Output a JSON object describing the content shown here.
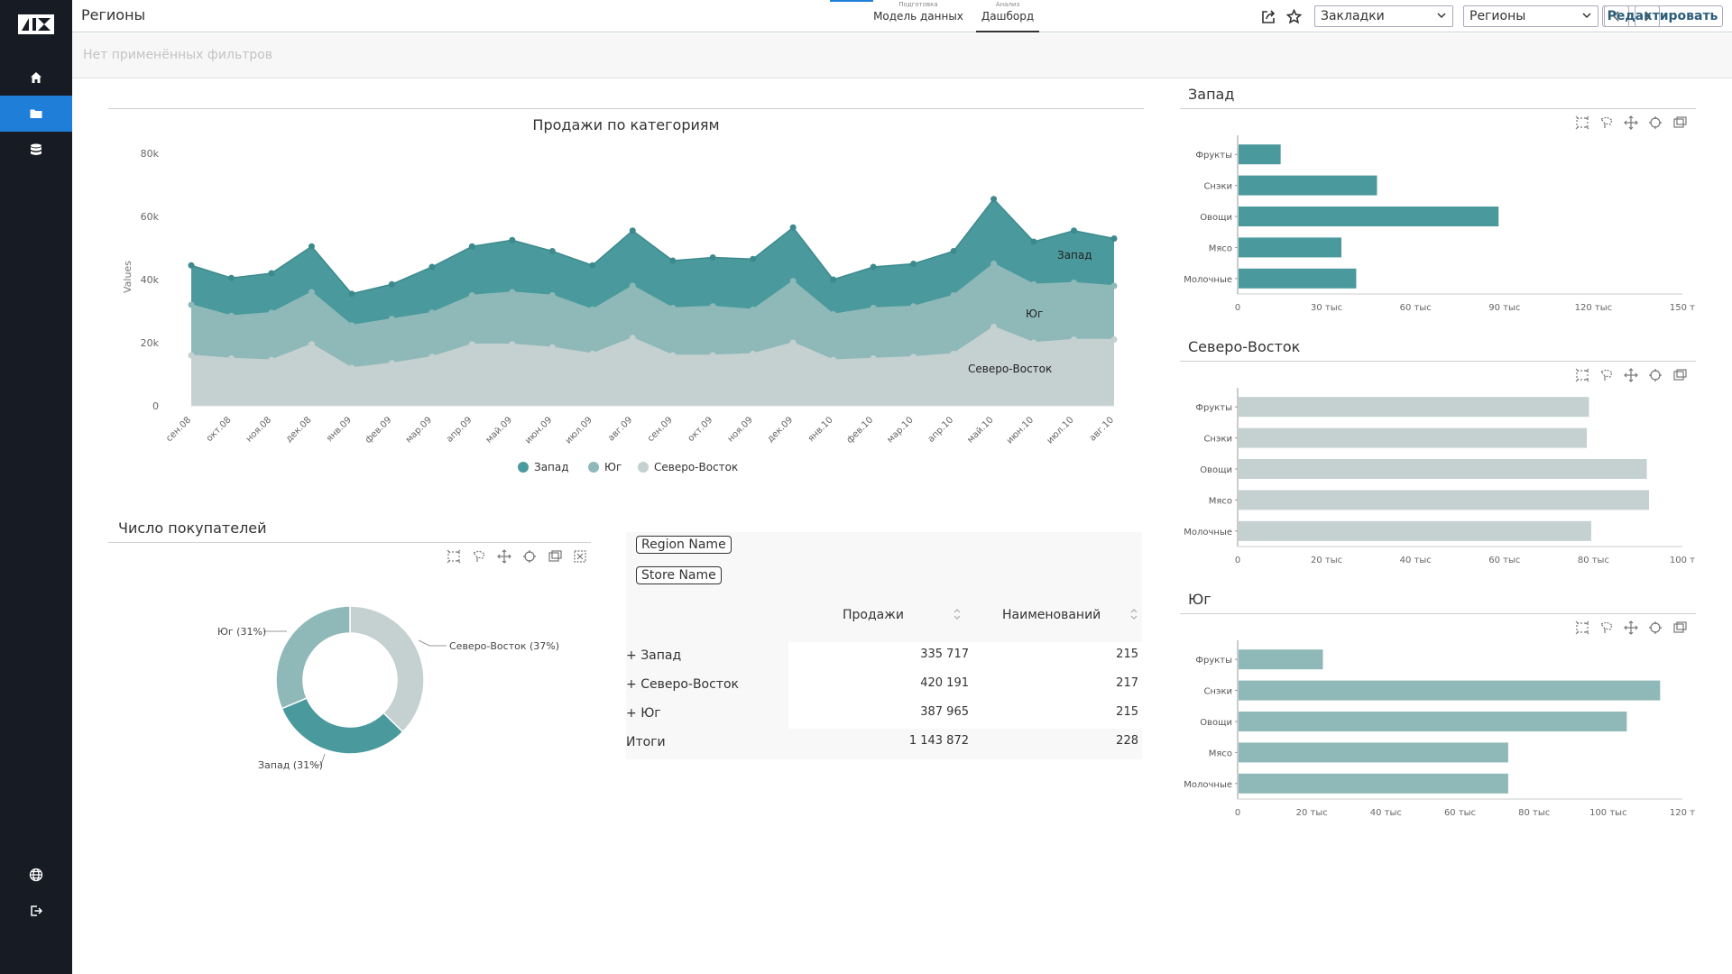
{
  "app": {
    "title": "Регионы",
    "sidebar": [
      "home",
      "folder",
      "database",
      "globe",
      "logout"
    ]
  },
  "mode_tabs": [
    {
      "sub": "Подготовка",
      "label": "Модель данных"
    },
    {
      "sub": "Анализ",
      "label": "Дашборд"
    }
  ],
  "toolbar": {
    "bookmarks_select": "Закладки",
    "regions_select": "Регионы",
    "edit_label": "Редактировать",
    "prev_label": "<",
    "next_label": ">"
  },
  "filters": {
    "empty_text": "Нет применённых фильтров"
  },
  "icons": {
    "export": "export-icon",
    "star": "star-icon",
    "chart_tools": [
      "select-box-icon",
      "lasso-icon",
      "zoom-icon",
      "reset-zoom-icon",
      "save-image-icon"
    ]
  },
  "colors": {
    "west": "#4a9a9d",
    "south": "#8fb9b8",
    "northeast": "#c5d0d1",
    "active_nav": "#1f7fd8",
    "sidebar_bg": "#161b24"
  },
  "area_chart": {
    "title": "Продажи по категориям",
    "ylabel": "Values",
    "yticks": [
      "80k",
      "60k",
      "40k",
      "20k",
      "0"
    ],
    "legend": [
      "Запад",
      "Юг",
      "Северо-Восток"
    ],
    "series_labels": [
      "Запад",
      "Юг",
      "Северо-Восток"
    ]
  },
  "pie_chart": {
    "title": "Число покупателей",
    "labels": [
      "Северо-Восток (37%)",
      "Запад (31%)",
      "Юг (31%)"
    ]
  },
  "pivot": {
    "chips": [
      "Region Name",
      "Store Name"
    ],
    "headers": [
      "Продажи",
      "Наименований"
    ],
    "rows": [
      {
        "label": "Запад",
        "sales": "335 717",
        "items": "215"
      },
      {
        "label": "Северо-Восток",
        "sales": "420 191",
        "items": "217"
      },
      {
        "label": "Юг",
        "sales": "387 965",
        "items": "215"
      }
    ],
    "total": {
      "label": "Итоги",
      "sales": "1 143 872",
      "items": "228"
    }
  },
  "bar_panels": [
    {
      "title": "Запад",
      "xticks": [
        "0",
        "30 тыс",
        "60 тыс",
        "90 тыс",
        "120 тыс",
        "150 т"
      ]
    },
    {
      "title": "Северо-Восток",
      "xticks": [
        "0",
        "20 тыс",
        "40 тыс",
        "60 тыс",
        "80 тыс",
        "100 т"
      ]
    },
    {
      "title": "Юг",
      "xticks": [
        "0",
        "20 тыс",
        "40 тыс",
        "60 тыс",
        "80 тыс",
        "100 тыс",
        "120 т"
      ]
    }
  ],
  "chart_data": [
    {
      "type": "area",
      "title": "Продажи по категориям",
      "xlabel": "",
      "ylabel": "Values",
      "ylim": [
        0,
        80000
      ],
      "stacked": true,
      "x": [
        "сен.08",
        "окт.08",
        "ноя.08",
        "дек.08",
        "янв.09",
        "фев.09",
        "мар.09",
        "апр.09",
        "май.09",
        "июн.09",
        "июл.09",
        "авг.09",
        "сен.09",
        "окт.09",
        "ноя.09",
        "дек.09",
        "янв.10",
        "фев.10",
        "мар.10",
        "апр.10",
        "май.10",
        "июн.10",
        "июл.10",
        "авг.10"
      ],
      "series": [
        {
          "name": "Северо-Восток",
          "values": [
            16000,
            15000,
            14500,
            19500,
            12000,
            13500,
            15500,
            19500,
            19500,
            18500,
            16500,
            21500,
            16000,
            16000,
            16500,
            20000,
            14500,
            15000,
            15500,
            16500,
            25000,
            20000,
            21000,
            21000
          ]
        },
        {
          "name": "Юг",
          "values": [
            16000,
            13500,
            15000,
            16500,
            13500,
            14000,
            14000,
            15500,
            16500,
            16500,
            14000,
            16500,
            15000,
            15500,
            14000,
            19500,
            14500,
            16000,
            16000,
            18500,
            20000,
            18500,
            18000,
            17000
          ]
        },
        {
          "name": "Запад",
          "values": [
            12500,
            12000,
            12500,
            14500,
            10000,
            11000,
            14500,
            15500,
            16500,
            14000,
            14000,
            17500,
            15000,
            15500,
            16000,
            17000,
            11000,
            13000,
            13500,
            14000,
            20500,
            13500,
            16500,
            15000
          ]
        }
      ],
      "legend": [
        "Запад",
        "Юг",
        "Северо-Восток"
      ],
      "legend_position": "bottom"
    },
    {
      "type": "pie",
      "title": "Число покупателей",
      "labels": [
        "Северо-Восток",
        "Запад",
        "Юг"
      ],
      "values": [
        37,
        31,
        31
      ],
      "donut": true
    },
    {
      "type": "bar",
      "title": "Запад",
      "orientation": "horizontal",
      "categories": [
        "Фрукты",
        "Снэки",
        "Овощи",
        "Мясо",
        "Молочные"
      ],
      "values": [
        14500,
        47000,
        88000,
        35000,
        40000
      ],
      "xlim": [
        0,
        150000
      ]
    },
    {
      "type": "bar",
      "title": "Северо-Восток",
      "orientation": "horizontal",
      "categories": [
        "Фрукты",
        "Снэки",
        "Овощи",
        "Мясо",
        "Молочные"
      ],
      "values": [
        79000,
        78500,
        92000,
        92500,
        79500
      ],
      "xlim": [
        0,
        100000
      ]
    },
    {
      "type": "bar",
      "title": "Юг",
      "orientation": "horizontal",
      "categories": [
        "Фрукты",
        "Снэки",
        "Овощи",
        "Мясо",
        "Молочные"
      ],
      "values": [
        23000,
        114000,
        105000,
        73000,
        73000
      ],
      "xlim": [
        0,
        120000
      ]
    }
  ]
}
